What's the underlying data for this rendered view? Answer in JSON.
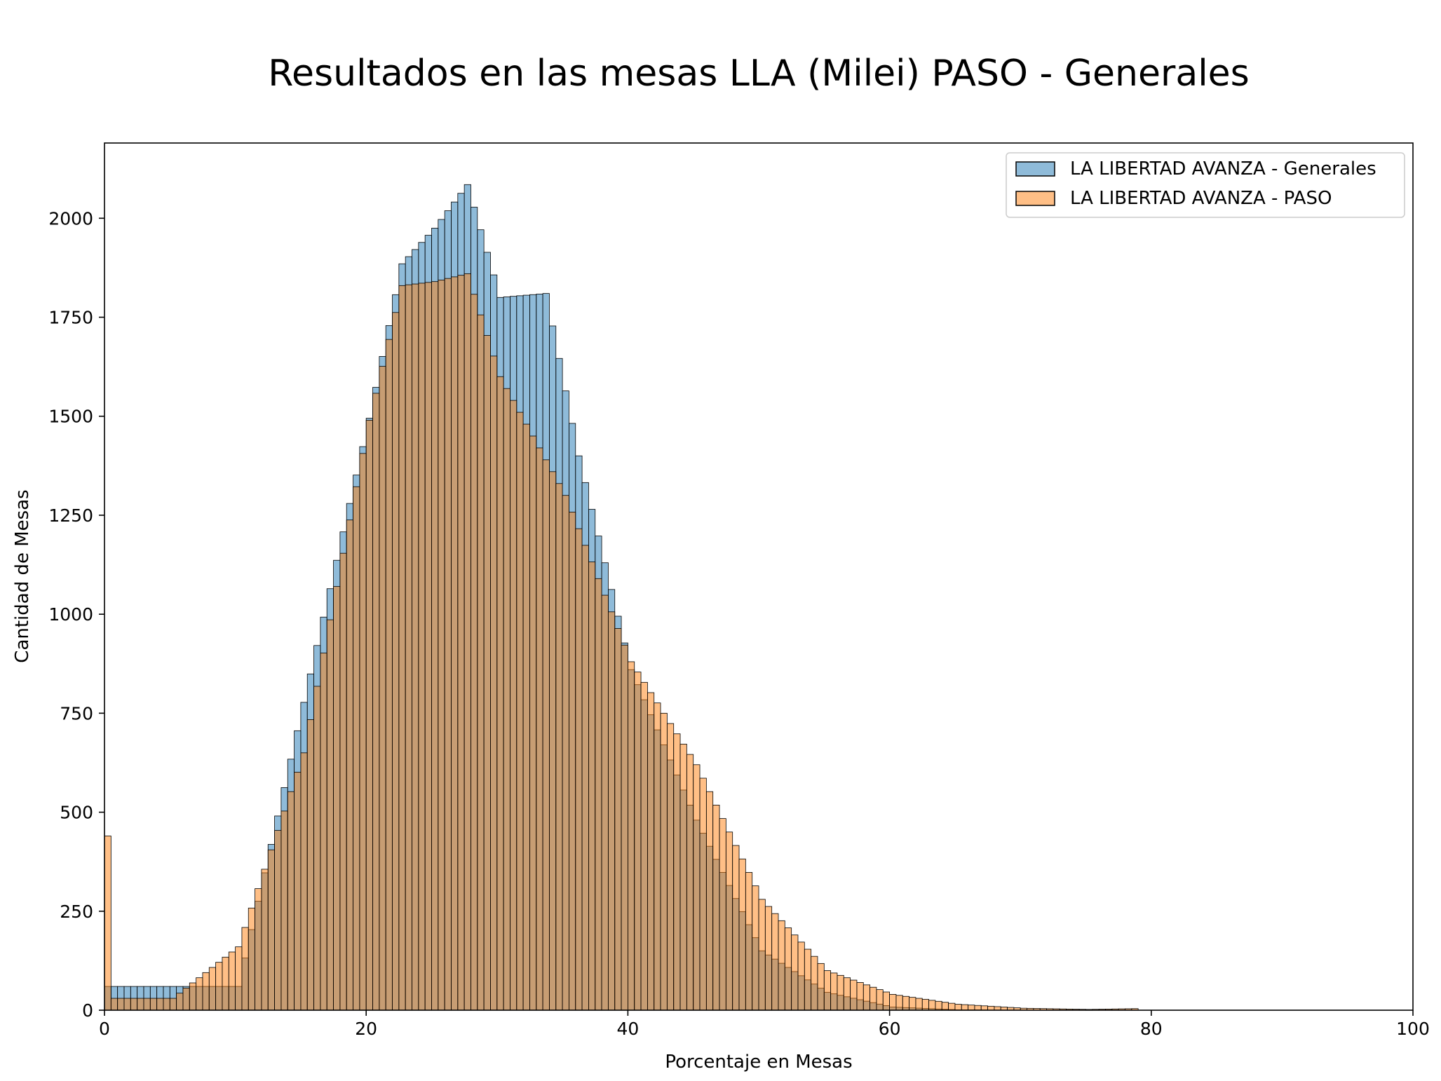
{
  "chart_data": {
    "type": "bar",
    "title": "Resultados en las mesas LLA (Milei) PASO - Generales",
    "xlabel": "Porcentaje en Mesas",
    "ylabel": "Cantidad de Mesas",
    "xlim": [
      0,
      100
    ],
    "ylim": [
      0,
      2190
    ],
    "xticks": [
      0,
      20,
      40,
      60,
      80,
      100
    ],
    "yticks": [
      0,
      250,
      500,
      750,
      1000,
      1250,
      1500,
      1750,
      2000
    ],
    "bin_width": 0.5,
    "legend_placement": "top-right",
    "grid": false,
    "series": [
      {
        "name": "LA LIBERTAD AVANZA - Generales",
        "color": "#1f77b4",
        "opacity": 0.5,
        "x": [
          0.0,
          10.0,
          20.0,
          22.5,
          25.0,
          27.5,
          30.0,
          33.5,
          36.0,
          40.0,
          45.0,
          50.0,
          55.0,
          60.0,
          65.0,
          70.0
        ],
        "values": [
          60,
          60,
          1495,
          1885,
          1975,
          2085,
          1800,
          1810,
          1400,
          860,
          480,
          150,
          45,
          8,
          1,
          0
        ]
      },
      {
        "name": "LA LIBERTAD AVANZA - PASO",
        "color": "#ff7f0e",
        "opacity": 0.5,
        "x": [
          0.0,
          0.5,
          5.0,
          10.0,
          15.0,
          20.0,
          22.5,
          25.0,
          27.5,
          30.0,
          35.0,
          40.0,
          45.0,
          50.0,
          55.0,
          60.0,
          65.0,
          70.0,
          75.0,
          78.5
        ],
        "values": [
          440,
          30,
          30,
          160,
          650,
          1490,
          1830,
          1840,
          1860,
          1600,
          1300,
          880,
          620,
          280,
          100,
          40,
          15,
          5,
          2,
          4
        ]
      }
    ]
  }
}
